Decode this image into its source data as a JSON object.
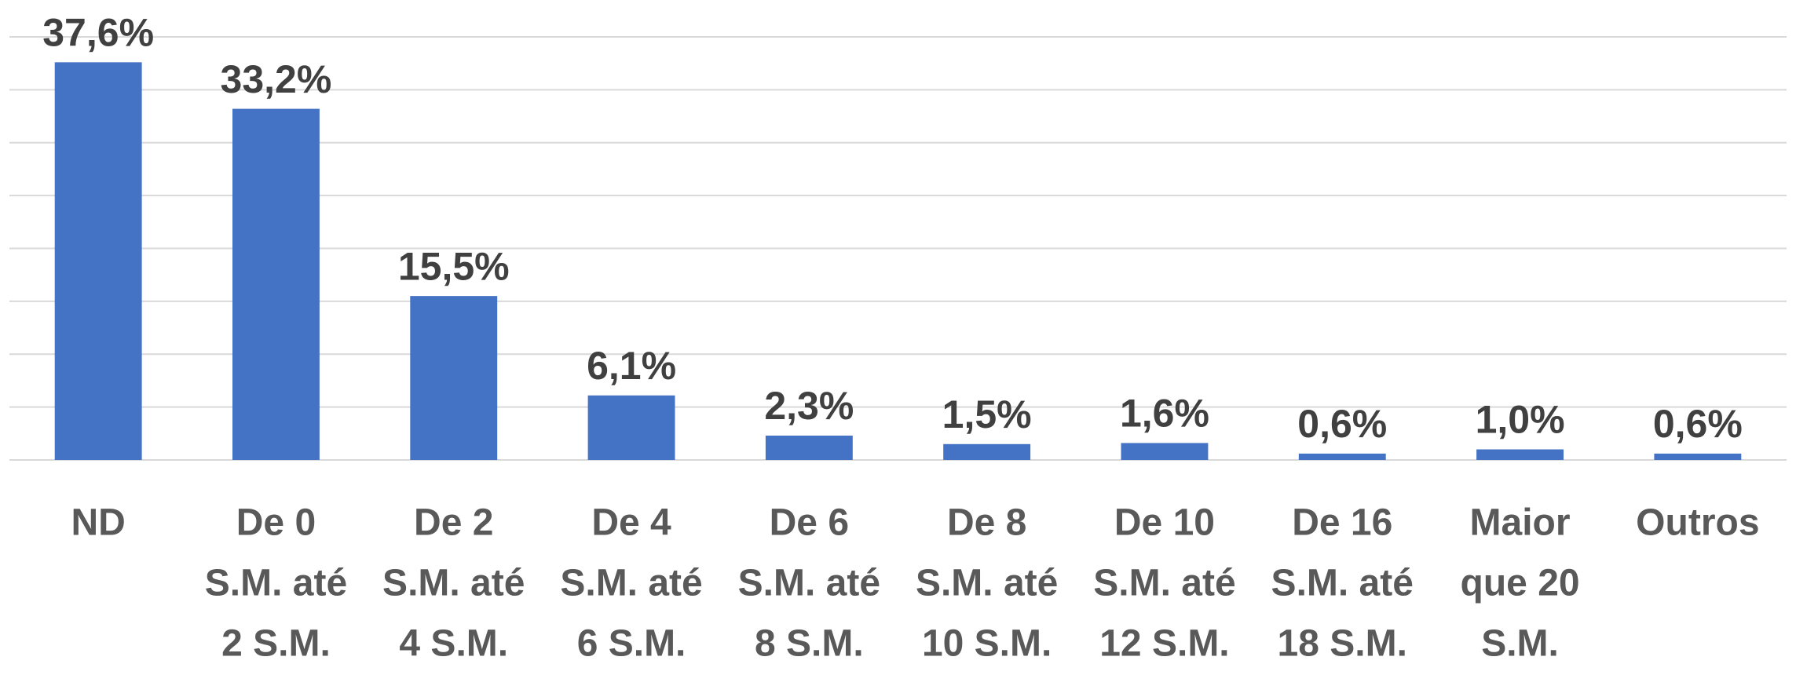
{
  "chart_data": {
    "type": "bar",
    "categories": [
      [
        "ND"
      ],
      [
        "De 0",
        "S.M. até",
        "2 S.M."
      ],
      [
        "De 2",
        "S.M. até",
        "4 S.M."
      ],
      [
        "De 4",
        "S.M. até",
        "6 S.M."
      ],
      [
        "De 6",
        "S.M. até",
        "8 S.M."
      ],
      [
        "De 8",
        "S.M. até",
        "10 S.M."
      ],
      [
        "De 10",
        "S.M. até",
        "12 S.M."
      ],
      [
        "De 16",
        "S.M. até",
        "18 S.M."
      ],
      [
        "Maior",
        "que 20",
        "S.M."
      ],
      [
        "Outros"
      ]
    ],
    "values": [
      37.6,
      33.2,
      15.5,
      6.1,
      2.3,
      1.5,
      1.6,
      0.6,
      1.0,
      0.6
    ],
    "value_labels": [
      "37,6%",
      "33,2%",
      "15,5%",
      "6,1%",
      "2,3%",
      "1,5%",
      "1,6%",
      "0,6%",
      "1,0%",
      "0,6%"
    ],
    "color": "#4472c4",
    "ylim": [
      0,
      40
    ],
    "yticks": [
      0,
      5,
      10,
      15,
      20,
      25,
      30,
      35,
      40
    ],
    "grid": true
  }
}
